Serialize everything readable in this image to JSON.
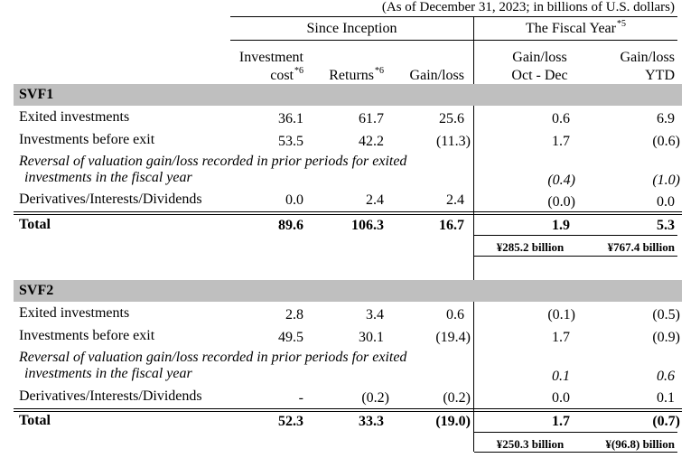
{
  "note": "(As of December 31, 2023; in billions of U.S. dollars)",
  "headers": {
    "since_inception": "Since Inception",
    "fiscal_year": "The Fiscal Year",
    "fiscal_year_mark": "*5",
    "investment_cost_1": "Investment",
    "investment_cost_2": "cost",
    "investment_cost_mark": "*6",
    "returns": "Returns",
    "returns_mark": "*6",
    "gain_loss": "Gain/loss",
    "gl_q_1": "Gain/loss",
    "gl_q_2": "Oct - Dec",
    "gl_ytd_1": "Gain/loss",
    "gl_ytd_2": "YTD"
  },
  "svf1": {
    "name": "SVF1",
    "exited": {
      "label": "Exited investments",
      "cost": "36.1",
      "returns": "61.7",
      "gl": "25.6",
      "q": "0.6",
      "ytd": "6.9"
    },
    "before_exit": {
      "label": "Investments before exit",
      "cost": "53.5",
      "returns": "42.2",
      "gl": "(11.3)",
      "q": "1.7",
      "ytd": "(0.6)"
    },
    "reversal": {
      "label_1": "Reversal of valuation gain/loss recorded in prior periods for exited",
      "label_2": "investments in the fiscal year",
      "q": "(0.4)",
      "ytd": "(1.0)"
    },
    "derivatives": {
      "label": "Derivatives/Interests/Dividends",
      "cost": "0.0",
      "returns": "2.4",
      "gl": "2.4",
      "q": "(0.0)",
      "ytd": "0.0"
    },
    "total": {
      "label": "Total",
      "cost": "89.6",
      "returns": "106.3",
      "gl": "16.7",
      "q": "1.9",
      "ytd": "5.3"
    },
    "yen": {
      "q": "¥285.2 billion",
      "ytd": "¥767.4 billion"
    }
  },
  "svf2": {
    "name": "SVF2",
    "exited": {
      "label": "Exited investments",
      "cost": "2.8",
      "returns": "3.4",
      "gl": "0.6",
      "q": "(0.1)",
      "ytd": "(0.5)"
    },
    "before_exit": {
      "label": "Investments before exit",
      "cost": "49.5",
      "returns": "30.1",
      "gl": "(19.4)",
      "q": "1.7",
      "ytd": "(0.9)"
    },
    "reversal": {
      "label_1": "Reversal of valuation gain/loss recorded in prior periods for exited",
      "label_2": "investments in the fiscal year",
      "q": "0.1",
      "ytd": "0.6"
    },
    "derivatives": {
      "label": "Derivatives/Interests/Dividends",
      "cost": "-",
      "returns": "(0.2)",
      "gl": "(0.2)",
      "q": "0.0",
      "ytd": "0.1"
    },
    "total": {
      "label": "Total",
      "cost": "52.3",
      "returns": "33.3",
      "gl": "(19.0)",
      "q": "1.7",
      "ytd": "(0.7)"
    },
    "yen": {
      "q": "¥250.3 billion",
      "ytd": "¥(96.8) billion"
    }
  }
}
